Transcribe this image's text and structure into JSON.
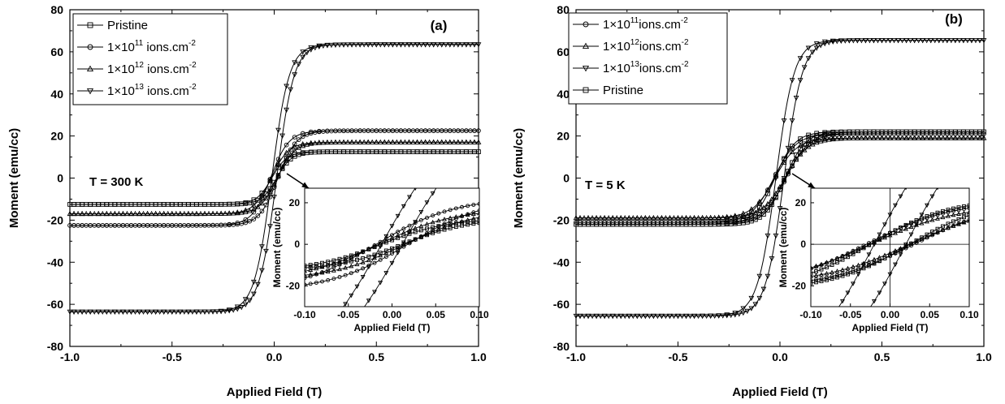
{
  "chart_data": [
    {
      "type": "line",
      "panel_label": "(a)",
      "annotation": "T = 300 K",
      "xlabel": "Applied Field (T)",
      "ylabel": "Moment (emu/cc)",
      "xlim": [
        -1.0,
        1.0
      ],
      "ylim": [
        -80,
        80
      ],
      "x_ticks": [
        "-1.0",
        "-0.5",
        "0.0",
        "0.5",
        "1.0"
      ],
      "y_ticks": [
        "-80",
        "-60",
        "-40",
        "-20",
        "0",
        "20",
        "40",
        "60",
        "80"
      ],
      "grid": false,
      "legend_position": "top-left",
      "series": [
        {
          "name": "Pristine",
          "legend": [
            "",
            "Pristine",
            "",
            ""
          ],
          "marker": "square",
          "saturation": 12.5,
          "coercivity": 0.012,
          "x0": 0.075
        },
        {
          "name": "1×10^11 ions.cm^-2",
          "legend": [
            "1×10",
            "11",
            " ions.cm",
            "-2"
          ],
          "marker": "circle",
          "saturation": 22.5,
          "coercivity": 0.018,
          "x0": 0.09
        },
        {
          "name": "1×10^12 ions.cm^-2",
          "legend": [
            "1×10",
            "12",
            " ions.cm",
            "-2"
          ],
          "marker": "triangle-up",
          "saturation": 17.0,
          "coercivity": 0.015,
          "x0": 0.085
        },
        {
          "name": "1×10^13 ions.cm^-2",
          "legend": [
            "1×10",
            "13",
            " ions.cm",
            "-2"
          ],
          "marker": "triangle-down",
          "saturation": 63.5,
          "coercivity": 0.012,
          "x0": 0.085
        }
      ],
      "inset": {
        "xlabel": "Applied Field (T)",
        "ylabel": "Moment (emu/cc)",
        "xlim": [
          -0.1,
          0.1
        ],
        "ylim": [
          -30,
          27
        ],
        "x_ticks": [
          "-0.10",
          "-0.05",
          "0.00",
          "0.05",
          "0.10"
        ],
        "y_ticks": [
          "-20",
          "0",
          "20"
        ]
      }
    },
    {
      "type": "line",
      "panel_label": "(b)",
      "annotation": "T = 5 K",
      "xlabel": "Applied Field (T)",
      "ylabel": "Moment (emu/cc)",
      "xlim": [
        -1.0,
        1.0
      ],
      "ylim": [
        -80,
        80
      ],
      "x_ticks": [
        "-1.0",
        "-0.5",
        "0.0",
        "0.5",
        "1.0"
      ],
      "y_ticks": [
        "-80",
        "-60",
        "-40",
        "-20",
        "0",
        "20",
        "40",
        "60",
        "80"
      ],
      "grid": false,
      "legend_position": "top-left",
      "series": [
        {
          "name": "1×10^11ions.cm^-2",
          "legend": [
            "1×10",
            "11",
            "ions.cm",
            "-2"
          ],
          "marker": "circle",
          "saturation": 21.0,
          "coercivity": 0.03,
          "x0": 0.11
        },
        {
          "name": "1×10^12ions.cm^-2",
          "legend": [
            "1×10",
            "12",
            "ions.cm",
            "-2"
          ],
          "marker": "triangle-up",
          "saturation": 19.0,
          "coercivity": 0.025,
          "x0": 0.11
        },
        {
          "name": "1×10^13ions.cm^-2",
          "legend": [
            "1×10",
            "13",
            "ions.cm",
            "-2"
          ],
          "marker": "triangle-down",
          "saturation": 65.5,
          "coercivity": 0.02,
          "x0": 0.09
        },
        {
          "name": "Pristine",
          "legend": [
            "",
            "Pristine",
            "",
            ""
          ],
          "marker": "square",
          "saturation": 22.0,
          "coercivity": 0.025,
          "x0": 0.1
        }
      ],
      "inset": {
        "xlabel": "Applied Field (T)",
        "ylabel": "Moment (emu/cc)",
        "xlim": [
          -0.1,
          0.1
        ],
        "ylim": [
          -30,
          27
        ],
        "x_ticks": [
          "-0.10",
          "-0.05",
          "0.00",
          "0.05",
          "0.10"
        ],
        "y_ticks": [
          "-20",
          "0",
          "20"
        ],
        "zero_lines": true
      }
    }
  ]
}
